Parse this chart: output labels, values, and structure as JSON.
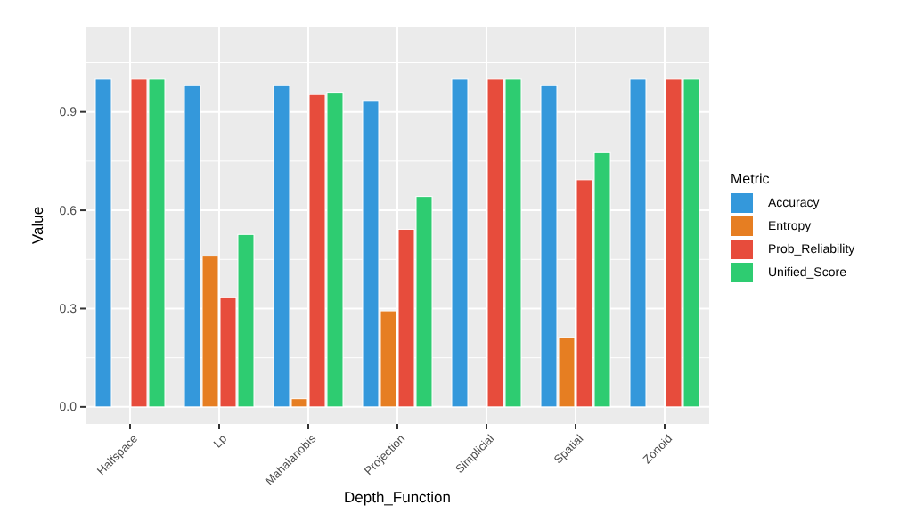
{
  "chart_data": {
    "type": "bar",
    "xlabel": "Depth_Function",
    "ylabel": "Value",
    "legend_title": "Metric",
    "legend": "right",
    "grid": true,
    "categories": [
      "Halfspace",
      "Lp",
      "Mahalanobis",
      "Projection",
      "Simplicial",
      "Spatial",
      "Zonoid"
    ],
    "ylim": [
      -0.052,
      1.16
    ],
    "yticks": [
      {
        "value": 0,
        "label": "0.0"
      },
      {
        "value": 0.3,
        "label": "0.3"
      },
      {
        "value": 0.6,
        "label": "0.6"
      },
      {
        "value": 0.9,
        "label": "0.9"
      }
    ],
    "series": [
      {
        "name": "Accuracy",
        "color": "#3498db",
        "values": [
          1.0,
          0.98,
          0.98,
          0.935,
          1.0,
          0.98,
          1.0
        ]
      },
      {
        "name": "Entropy",
        "color": "#e67e22",
        "values": [
          null,
          0.46,
          0.025,
          0.293,
          null,
          0.212,
          null
        ]
      },
      {
        "name": "Prob_Reliability",
        "color": "#e74c3c",
        "values": [
          1.0,
          0.333,
          0.953,
          0.542,
          1.0,
          0.693,
          1.0
        ]
      },
      {
        "name": "Unified_Score",
        "color": "#2ecc71",
        "values": [
          1.0,
          0.526,
          0.96,
          0.642,
          1.0,
          0.776,
          1.0
        ]
      }
    ]
  }
}
